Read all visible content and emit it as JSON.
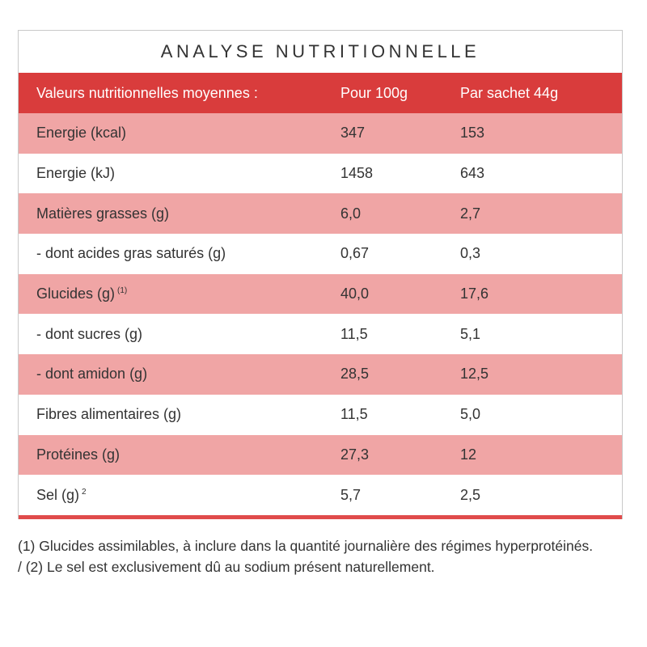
{
  "title": "ANALYSE NUTRITIONNELLE",
  "colors": {
    "header_bg": "#d93c3c",
    "shaded_row": "#f0a5a5",
    "plain_row": "#ffffff",
    "bottom_bar": "#e04b4b"
  },
  "table": {
    "headers": [
      "Valeurs nutritionnelles moyennes :",
      "Pour 100g",
      "Par sachet 44g"
    ],
    "rows": [
      {
        "label": "Energie (kcal)",
        "sup": "",
        "per100": "347",
        "perSachet": "153",
        "shaded": true
      },
      {
        "label": "Energie (kJ)",
        "sup": "",
        "per100": "1458",
        "perSachet": "643",
        "shaded": false
      },
      {
        "label": "Matières grasses (g)",
        "sup": "",
        "per100": "6,0",
        "perSachet": "2,7",
        "shaded": true
      },
      {
        "label": "- dont acides gras saturés (g)",
        "sup": "",
        "per100": "0,67",
        "perSachet": "0,3",
        "shaded": false
      },
      {
        "label": "Glucides (g)",
        "sup": "(1)",
        "per100": "40,0",
        "perSachet": "17,6",
        "shaded": true
      },
      {
        "label": "- dont sucres (g)",
        "sup": "",
        "per100": "11,5",
        "perSachet": "5,1",
        "shaded": false
      },
      {
        "label": "- dont amidon (g)",
        "sup": "",
        "per100": "28,5",
        "perSachet": "12,5",
        "shaded": true
      },
      {
        "label": "Fibres alimentaires (g)",
        "sup": "",
        "per100": "11,5",
        "perSachet": "5,0",
        "shaded": false
      },
      {
        "label": "Protéines (g)",
        "sup": "",
        "per100": "27,3",
        "perSachet": "12",
        "shaded": true
      },
      {
        "label": "Sel (g)",
        "sup": "2",
        "per100": "5,7",
        "perSachet": "2,5",
        "shaded": false
      }
    ]
  },
  "footnote": "(1) Glucides assimilables, à inclure dans la quantité journalière des régimes hyperprotéinés. / (2) Le sel est exclusivement dû au sodium présent naturellement."
}
